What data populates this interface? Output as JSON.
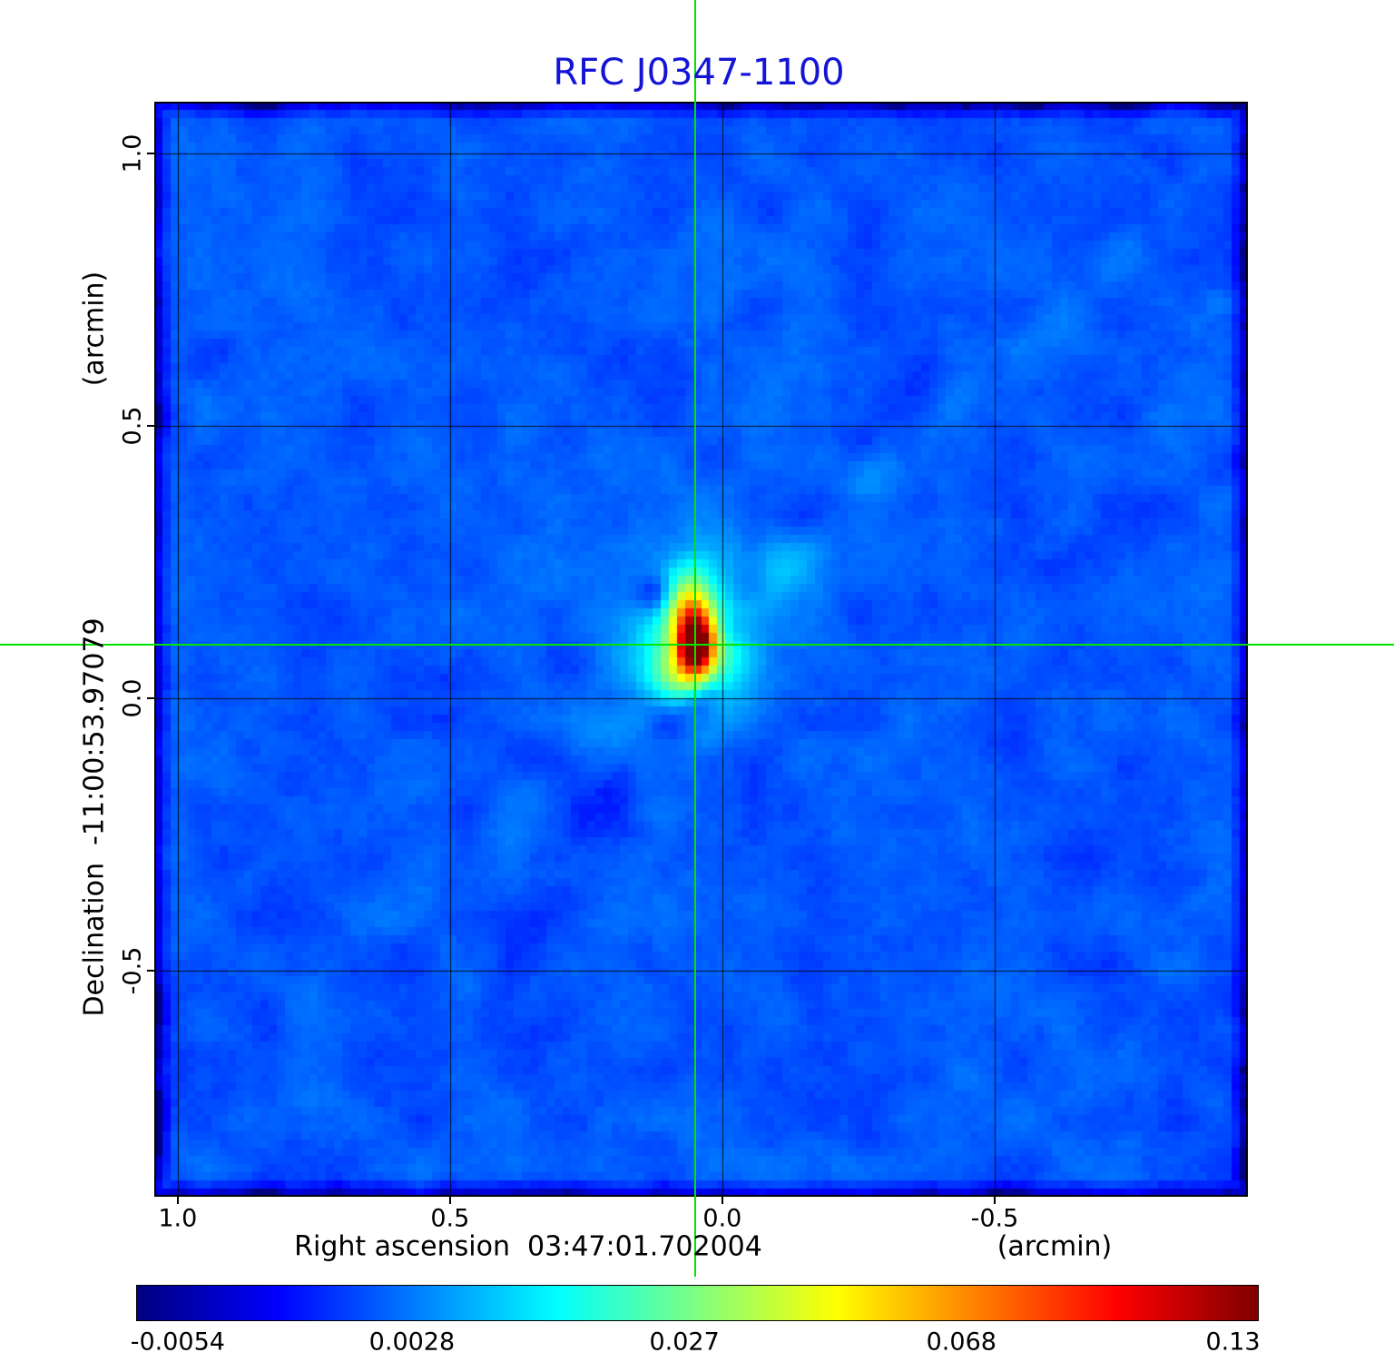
{
  "chart_data": {
    "type": "heatmap",
    "title": "RFC J0347-1100",
    "x_axis": {
      "label": "Right ascension  03:47:01.702004",
      "unit_label": "(arcmin)",
      "range": [
        1.043,
        -0.965
      ],
      "ticks": [
        {
          "value": 1.0,
          "label": "1.0"
        },
        {
          "value": 0.5,
          "label": "0.5"
        },
        {
          "value": 0.0,
          "label": "0.0"
        },
        {
          "value": -0.5,
          "label": "-0.5"
        }
      ]
    },
    "y_axis": {
      "label": "Declination  -11:00:53.97079",
      "unit_label": "(arcmin)",
      "range": [
        -0.916,
        1.095
      ],
      "ticks": [
        {
          "value": 1.0,
          "label": "1.0"
        },
        {
          "value": 0.5,
          "label": "0.5"
        },
        {
          "value": 0.0,
          "label": "0.0"
        },
        {
          "value": -0.5,
          "label": "-0.5"
        }
      ]
    },
    "grid": true,
    "crosshair": {
      "x_arcmin": 0.05,
      "y_arcmin": 0.098
    },
    "source_peak": {
      "x_arcmin": 0.05,
      "y_arcmin": 0.098,
      "value": 0.13
    },
    "colorbar": {
      "colormap": "jet",
      "scale": "sqrt",
      "vmin": -0.0054,
      "vmax": 0.13,
      "ticks": [
        {
          "value": -0.0054,
          "label": "-0.0054"
        },
        {
          "value": 0.0028,
          "label": "0.0028"
        },
        {
          "value": 0.027,
          "label": "0.027"
        },
        {
          "value": 0.068,
          "label": "0.068"
        },
        {
          "value": 0.13,
          "label": "0.13"
        }
      ]
    },
    "colors": {
      "title": "#1414d6",
      "crosshair": "#00e400",
      "grid": "#000000",
      "text": "#000000"
    }
  }
}
